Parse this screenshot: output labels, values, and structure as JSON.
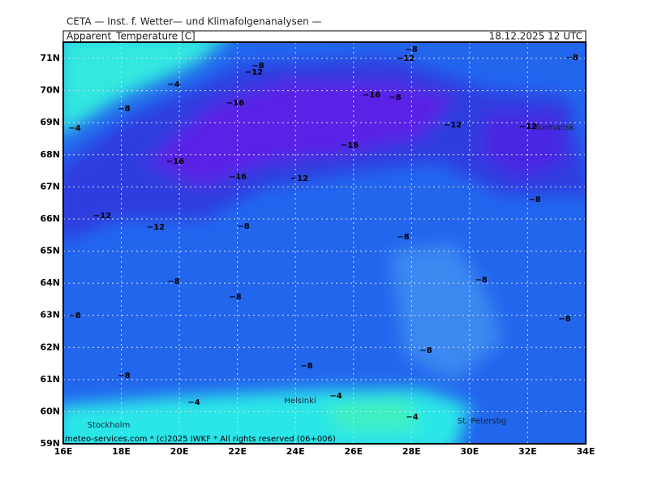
{
  "header": {
    "institute": "CETA — Inst. f. Wetter— und Klimafolgenanalysen —",
    "parameter": "Apparent_Temperature [C]",
    "valid_time": "18.12.2025 12 UTC"
  },
  "map": {
    "lat_labels": [
      "59N",
      "60N",
      "61N",
      "62N",
      "63N",
      "64N",
      "65N",
      "66N",
      "67N",
      "68N",
      "69N",
      "70N",
      "71N"
    ],
    "lon_labels": [
      "16E",
      "18E",
      "20E",
      "22E",
      "24E",
      "26E",
      "28E",
      "30E",
      "32E",
      "34E"
    ],
    "cities": [
      "Murmansk",
      "Helsinki",
      "Stockholm",
      "St. Petersbg"
    ],
    "contour_labels": [
      "−8",
      "−12",
      "−8",
      "−8",
      "−12",
      "−4",
      "−16",
      "−8",
      "−8",
      "−16",
      "−4",
      "−12",
      "−12",
      "−16",
      "−16",
      "−16",
      "−12",
      "−8",
      "−12",
      "−12",
      "−8",
      "−8",
      "−8",
      "−8",
      "−8",
      "−8",
      "−8",
      "−8",
      "−8",
      "−8",
      "−4",
      "−4",
      "−4"
    ]
  },
  "footer": "meteo-services.com * (c)2025 IWKF * All rights reserved (06+006)"
}
